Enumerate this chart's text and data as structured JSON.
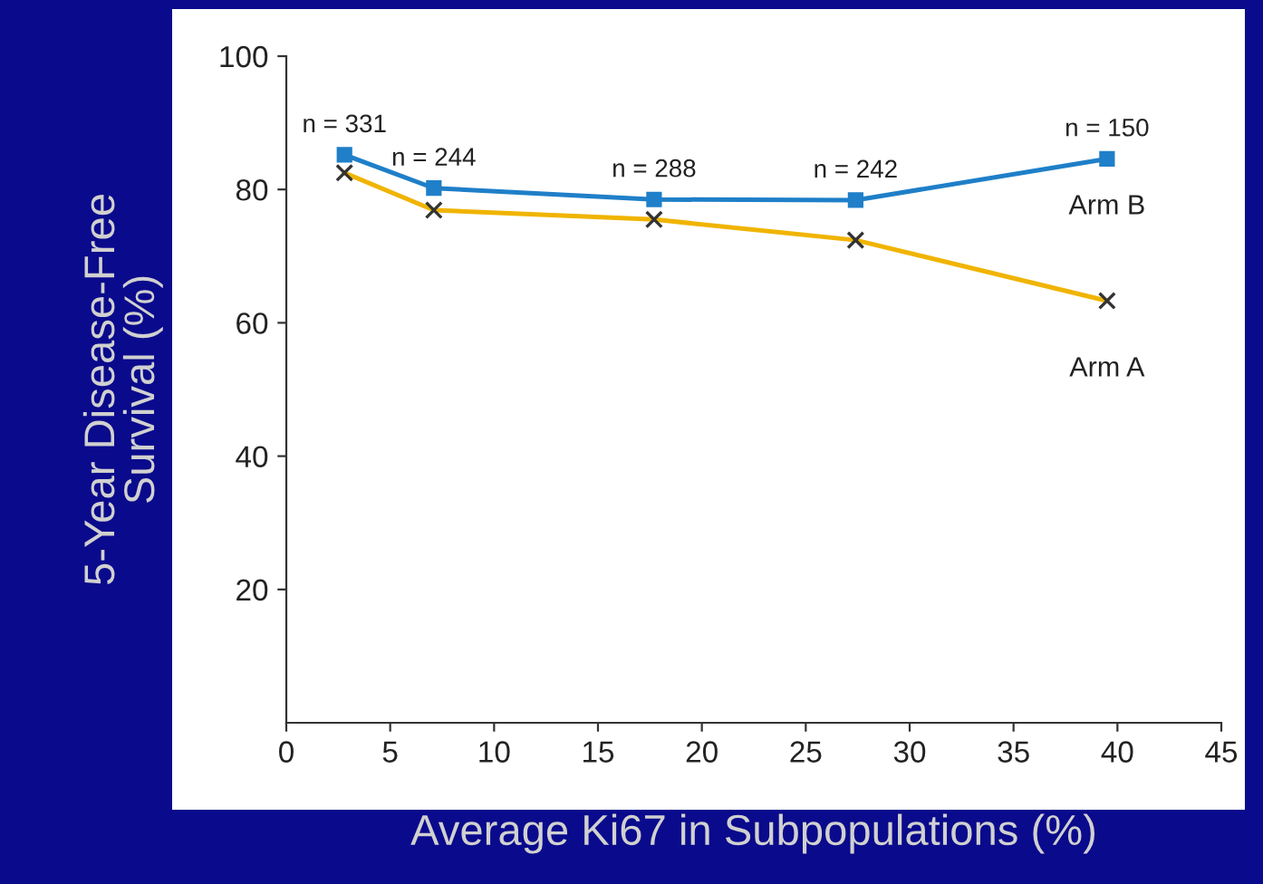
{
  "chart_data": {
    "type": "line",
    "xlabel": "Average Ki67 in Subpopulations (%)",
    "ylabel": "5-Year Disease-Free\nSurvival (%)",
    "xlim": [
      0,
      45
    ],
    "xticks": [
      0,
      5,
      10,
      15,
      20,
      25,
      30,
      35,
      40,
      45
    ],
    "ylim": [
      0,
      100
    ],
    "yticks": [
      20,
      40,
      60,
      80,
      100
    ],
    "grid": false,
    "legend": false,
    "line_style": "solid",
    "series": [
      {
        "name": "Arm B",
        "color": "#1f7fc8",
        "marker": "square",
        "x": [
          2.8,
          7.1,
          17.7,
          27.4,
          39.5
        ],
        "values": [
          85.2,
          80.2,
          78.5,
          78.4,
          84.6
        ]
      },
      {
        "name": "Arm A",
        "color": "#f0b400",
        "marker": "cross",
        "x": [
          2.8,
          7.1,
          17.7,
          27.4,
          39.5
        ],
        "values": [
          82.5,
          76.9,
          75.5,
          72.4,
          63.3
        ]
      }
    ],
    "annotations": [
      {
        "text": "n = 331",
        "x": 2.8,
        "y": 85.2
      },
      {
        "text": "n = 244",
        "x": 7.1,
        "y": 80.2
      },
      {
        "text": "n = 288",
        "x": 17.7,
        "y": 78.5
      },
      {
        "text": "n = 242",
        "x": 27.4,
        "y": 78.4
      },
      {
        "text": "n = 150",
        "x": 39.5,
        "y": 84.6
      }
    ]
  }
}
